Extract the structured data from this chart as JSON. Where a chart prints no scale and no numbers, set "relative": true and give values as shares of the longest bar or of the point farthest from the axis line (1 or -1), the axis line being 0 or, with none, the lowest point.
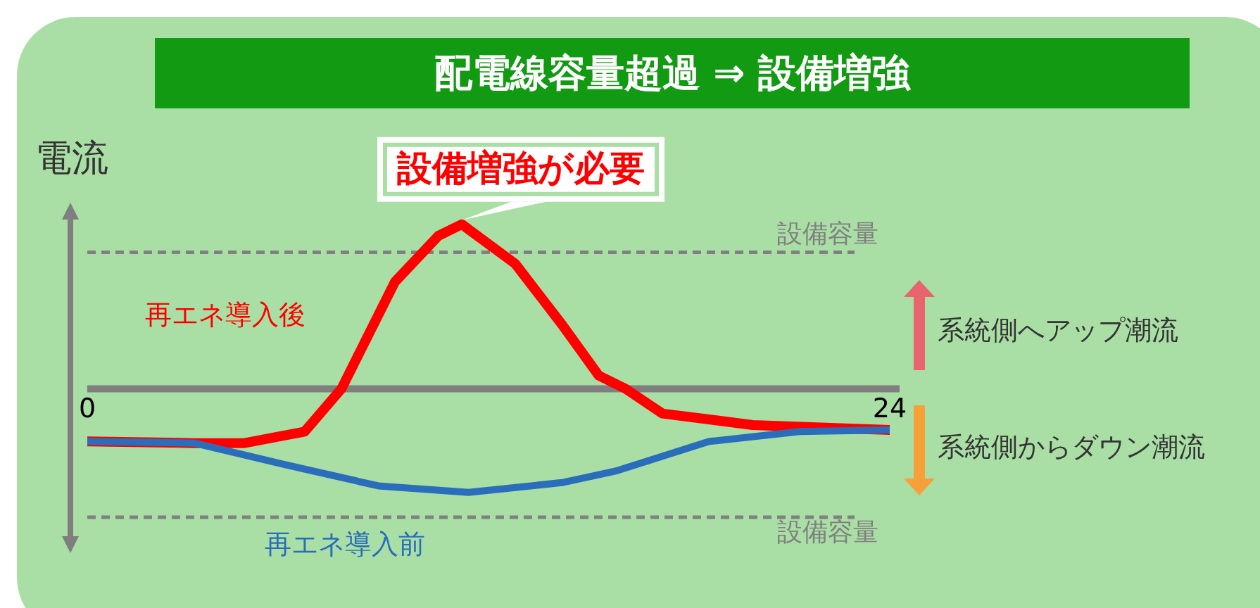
{
  "chart_data": {
    "type": "line",
    "title": "配電線容量超過 ⇒ 設備増強",
    "ylabel": "電流",
    "relative": true,
    "legend": false,
    "xlim": [
      0,
      24
    ],
    "xticks": [
      0,
      24
    ],
    "series": [
      {
        "name": "再エネ導入後",
        "color": "#ff0000",
        "x": [
          0,
          3.2,
          4.7,
          6.5,
          7.6,
          9.2,
          10.5,
          11.2,
          12.8,
          14.2,
          15.3,
          16.1,
          17.2,
          19.9,
          24
        ],
        "values": [
          -0.32,
          -0.33,
          -0.33,
          -0.26,
          0,
          0.65,
          0.93,
          1,
          0.76,
          0.39,
          0.08,
          0,
          -0.15,
          -0.22,
          -0.25
        ]
      },
      {
        "name": "再エネ導入前",
        "color": "#2a6ebb",
        "x": [
          0,
          3.2,
          5.9,
          8.7,
          11.4,
          14.2,
          15.8,
          18.6,
          21.3,
          24
        ],
        "values": [
          -0.32,
          -0.33,
          -0.46,
          -0.59,
          -0.63,
          -0.57,
          -0.5,
          -0.32,
          -0.26,
          -0.25
        ]
      }
    ],
    "ref_lines": [
      {
        "axis": "y",
        "value": 0.83,
        "label": "設備容量",
        "color": "#808080",
        "line_style": "dashed"
      },
      {
        "axis": "y",
        "value": -0.78,
        "label": "設備容量",
        "color": "#808080",
        "line_style": "dashed"
      }
    ],
    "annotations": [
      {
        "text": "設備増強が必要",
        "x": 11.2,
        "y": 1
      },
      "系統側へアップ潮流",
      "系統側からダウン潮流"
    ]
  }
}
